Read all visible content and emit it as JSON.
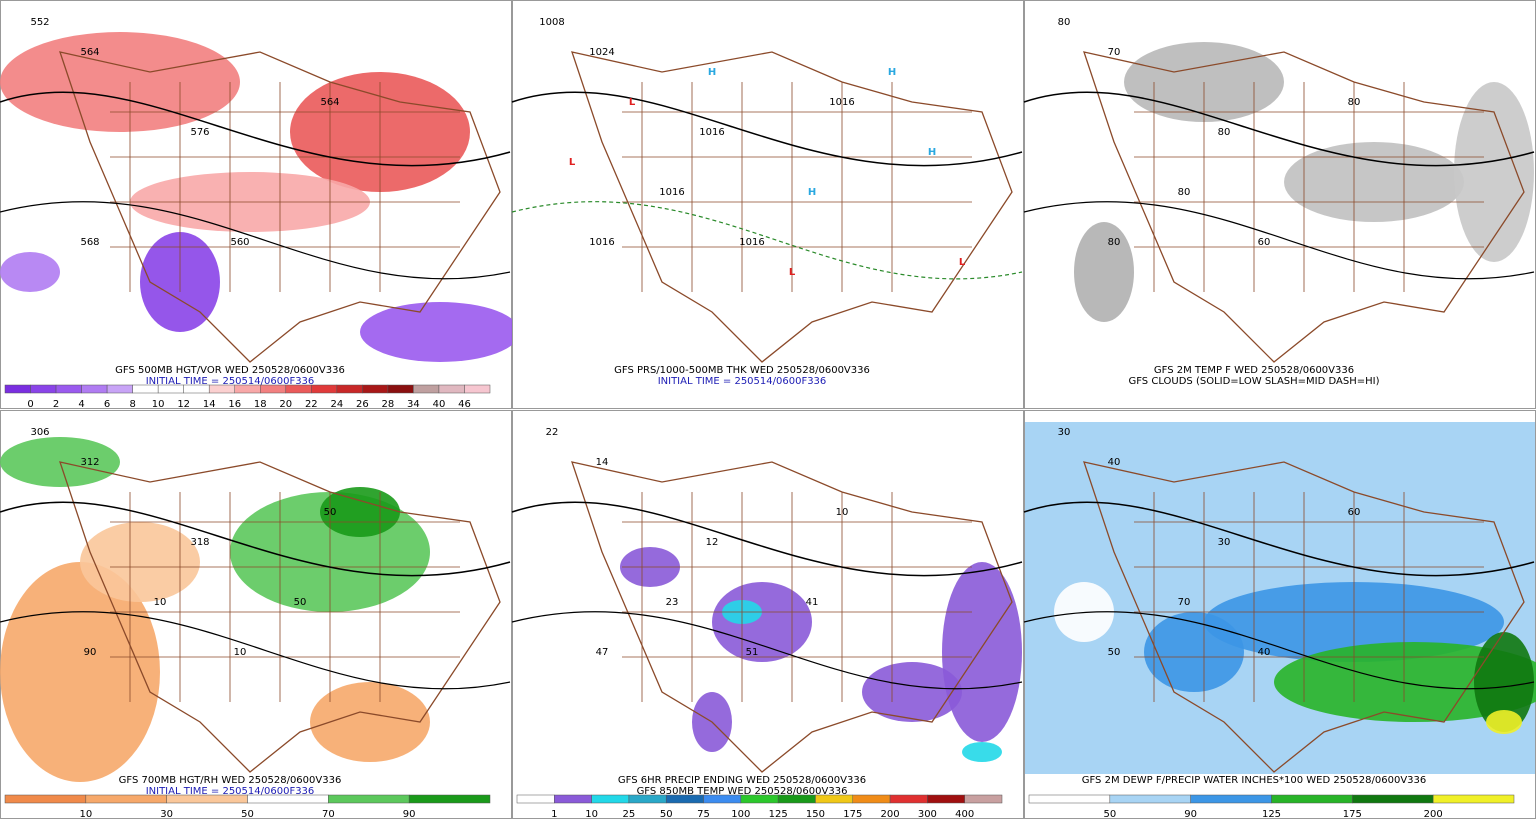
{
  "panels": [
    {
      "title": "GFS 500MB HGT/VOR WED 250528/0600V336",
      "subtitle": "INITIAL TIME = 250514/0600F336",
      "subtitle_color": "#1c1cb4",
      "colorbar": {
        "labels": [
          0,
          2,
          4,
          6,
          8,
          10,
          12,
          14,
          16,
          18,
          20,
          22,
          24,
          26,
          28,
          34,
          40,
          46
        ],
        "colors": [
          "#7a2ee0",
          "#8a44e8",
          "#9a5aee",
          "#b07cf2",
          "#c8a4f6",
          "#ffffff",
          "#ffffff",
          "#ffffff",
          "#fbd0d0",
          "#f8a8a8",
          "#f28080",
          "#ea5a5a",
          "#e03a3a",
          "#c82828",
          "#a81818",
          "#8a1010",
          "#bfa0a0",
          "#e0b8c0",
          "#f6c6d0"
        ]
      },
      "map_labels": [
        "552",
        "564",
        "576",
        "564",
        "568",
        "560"
      ]
    },
    {
      "title": "GFS PRS/1000-500MB THK WED 250528/0600V336",
      "subtitle": "INITIAL TIME = 250514/0600F336",
      "subtitle_color": "#1c1cb4",
      "map_labels": [
        "1008",
        "1024",
        "1016",
        "1016",
        "1016",
        "1016",
        "1016",
        "H",
        "H",
        "H",
        "H",
        "L",
        "L",
        "L",
        "L"
      ]
    },
    {
      "title": "GFS 2M TEMP F WED 250528/0600V336",
      "subtitle": "GFS CLOUDS (SOLID=LOW SLASH=MID DASH=HI)",
      "subtitle_color": "#000000",
      "map_labels": [
        "80",
        "70",
        "80",
        "80",
        "80",
        "60",
        "80"
      ]
    },
    {
      "title": "GFS 700MB HGT/RH WED 250528/0600V336",
      "subtitle": "INITIAL TIME = 250514/0600F336",
      "subtitle_color": "#1c1cb4",
      "colorbar": {
        "labels": [
          10,
          30,
          50,
          70,
          90
        ],
        "colors": [
          "#f08a4a",
          "#f6a86a",
          "#fac79a",
          "#ffffff",
          "#5cc85c",
          "#1a9a1a"
        ]
      },
      "map_labels": [
        "306",
        "312",
        "318",
        "50",
        "90",
        "10",
        "10",
        "50"
      ]
    },
    {
      "title": "GFS 6HR PRECIP ENDING WED 250528/0600V336",
      "subtitle": "GFS 850MB TEMP WED 250528/0600V336",
      "subtitle_color": "#000000",
      "colorbar": {
        "labels": [
          1,
          10,
          25,
          50,
          75,
          100,
          125,
          150,
          175,
          200,
          300,
          400
        ],
        "colors": [
          "#ffffff",
          "#8a5ad8",
          "#22d8e8",
          "#2aa8c8",
          "#1a6ab0",
          "#3c8cf0",
          "#2cc82c",
          "#1a9a1a",
          "#f0c818",
          "#f08c18",
          "#e03030",
          "#a01010",
          "#c8a0a0"
        ]
      },
      "map_labels": [
        "22",
        "14",
        "12",
        "10",
        "47",
        "51",
        "23",
        "41"
      ]
    },
    {
      "title": "GFS 2M DEWP F/PRECIP WATER INCHES*100 WED 250528/0600V336",
      "subtitle_color": "#000000",
      "colorbar": {
        "labels": [
          50,
          90,
          125,
          175,
          200
        ],
        "colors": [
          "#ffffff",
          "#a8d4f4",
          "#3c96e6",
          "#28b428",
          "#107810",
          "#f0f028"
        ]
      },
      "map_labels": [
        "30",
        "40",
        "30",
        "60",
        "50",
        "40",
        "70"
      ]
    }
  ]
}
